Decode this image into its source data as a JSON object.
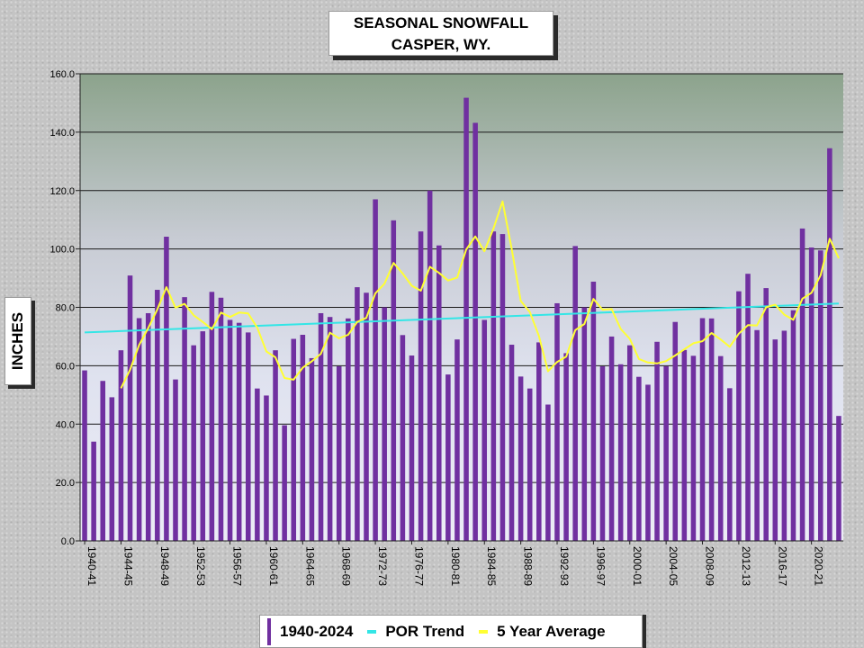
{
  "chart_data": {
    "type": "bar",
    "title": "SEASONAL  SNOWFALL",
    "subtitle": "CASPER, WY.",
    "ylabel": "INCHES",
    "ylim": [
      0,
      160
    ],
    "y_ticks": [
      "0.0",
      "20.0",
      "40.0",
      "60.0",
      "80.0",
      "100.0",
      "120.0",
      "140.0",
      "160.0"
    ],
    "grid": true,
    "legend_position": "bottom",
    "x_tick_labels": [
      "1940-41",
      "1944-45",
      "1948-49",
      "1952-53",
      "1956-57",
      "1960-61",
      "1964-65",
      "1968-69",
      "1972-73",
      "1976-77",
      "1980-81",
      "1984-85",
      "1988-89",
      "1992-93",
      "1996-97",
      "2000-01",
      "2004-05",
      "2008-09",
      "2012-13",
      "2016-17",
      "2020-21"
    ],
    "x_tick_every": 4,
    "colors": {
      "bars": "#7030a0",
      "trend": "#33e6e6",
      "average": "#ffff33"
    },
    "series": [
      {
        "name": "1940-2024",
        "type": "bar",
        "values": [
          58.4,
          34.0,
          54.8,
          49.2,
          65.3,
          90.9,
          76.3,
          78.0,
          86.0,
          104.2,
          55.3,
          83.5,
          67.0,
          71.8,
          85.3,
          83.3,
          75.7,
          74.7,
          71.4,
          52.2,
          49.8,
          65.3,
          39.6,
          69.2,
          70.6,
          62.6,
          78.0,
          76.7,
          59.8,
          76.2,
          86.9,
          85.0,
          117.0,
          80.0,
          109.8,
          70.5,
          63.5,
          106.0,
          120.0,
          101.2,
          57.0,
          69.0,
          151.8,
          143.2,
          75.7,
          106.0,
          105.1,
          67.2,
          56.3,
          52.2,
          68.0,
          46.7,
          81.4,
          64.3,
          101.0,
          80.0,
          88.8,
          59.8,
          70.0,
          60.5,
          67.0,
          56.2,
          53.5,
          68.2,
          59.8,
          75.0,
          65.4,
          63.4,
          76.3,
          76.2,
          63.3,
          52.3,
          85.5,
          91.5,
          72.2,
          86.6,
          69.0,
          72.0,
          79.0,
          107.0,
          100.5,
          99.5,
          134.5,
          42.8
        ]
      },
      {
        "name": "POR Trend",
        "type": "line",
        "start": 71.4,
        "end": 81.3
      },
      {
        "name": "5 Year Average",
        "type": "line",
        "values": [
          null,
          null,
          null,
          null,
          52.3,
          58.6,
          67.1,
          72.9,
          79.3,
          86.9,
          79.9,
          81.2,
          77.3,
          75.0,
          72.5,
          78.2,
          76.7,
          78.2,
          77.9,
          73.0,
          64.9,
          62.9,
          55.8,
          55.2,
          59.3,
          61.5,
          64.1,
          71.3,
          69.4,
          70.6,
          75.0,
          76.4,
          84.8,
          88.1,
          95.2,
          91.6,
          87.4,
          85.7,
          93.9,
          91.8,
          89.2,
          90.2,
          99.8,
          104.3,
          99.2,
          107.0,
          116.3,
          100.1,
          82.2,
          78.4,
          70.2,
          58.1,
          61.3,
          63.1,
          72.2,
          74.3,
          82.9,
          79.2,
          79.4,
          72.6,
          69.2,
          62.3,
          61.1,
          60.8,
          61.6,
          63.5,
          65.6,
          67.7,
          68.4,
          71.2,
          69.0,
          66.5,
          71.0,
          73.9,
          73.8,
          80.0,
          80.9,
          77.5,
          75.7,
          83.0,
          85.0,
          91.0,
          103.5,
          96.8
        ]
      }
    ]
  },
  "legend": {
    "items": [
      {
        "label": "1940-2024",
        "color": "#7030a0",
        "kind": "bar"
      },
      {
        "label": "POR Trend",
        "color": "#33e6e6",
        "kind": "line"
      },
      {
        "label": "5 Year Average",
        "color": "#ffff33",
        "kind": "line"
      }
    ]
  }
}
